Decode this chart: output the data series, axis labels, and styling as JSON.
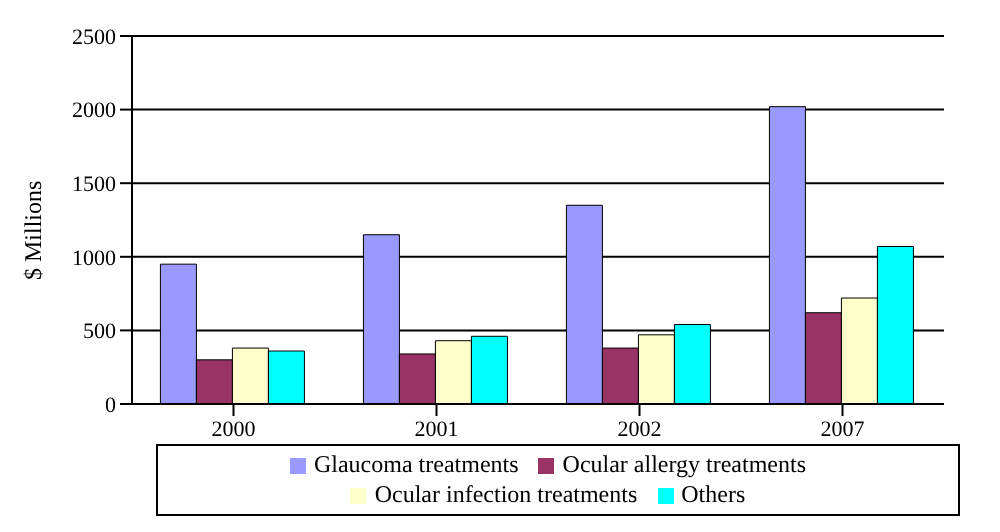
{
  "chart_data": {
    "type": "bar",
    "ylabel": "$ Millions",
    "categories": [
      "2000",
      "2001",
      "2002",
      "2007"
    ],
    "series": [
      {
        "name": "Glaucoma treatments",
        "color": "#9999ff",
        "values": [
          950,
          1150,
          1350,
          2020
        ]
      },
      {
        "name": "Ocular allergy treatments",
        "color": "#993366",
        "values": [
          300,
          340,
          380,
          620
        ]
      },
      {
        "name": "Ocular infection treatments",
        "color": "#ffffcc",
        "values": [
          380,
          430,
          470,
          720
        ]
      },
      {
        "name": "Others",
        "color": "#00ffff",
        "values": [
          360,
          460,
          540,
          1070
        ]
      }
    ],
    "ylim": [
      0,
      2500
    ],
    "yticks": [
      0,
      500,
      1000,
      1500,
      2000,
      2500
    ],
    "grid": "y",
    "legend": "bottom"
  }
}
